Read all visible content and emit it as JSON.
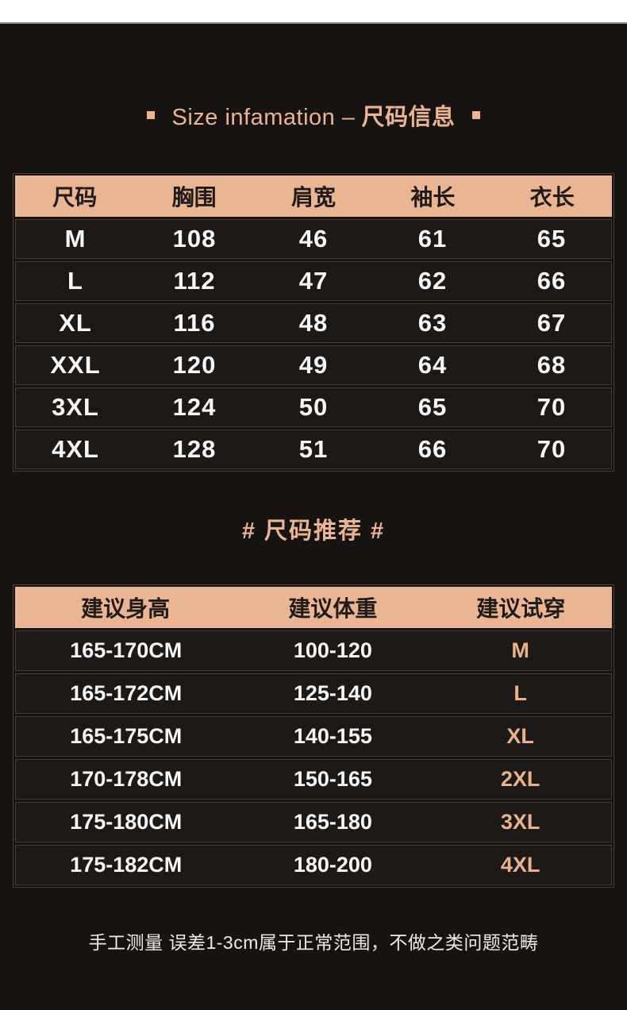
{
  "page": {
    "title_en": "Size infamation –",
    "title_zh": "尺码信息",
    "section2_title": "# 尺码推荐 #",
    "footer_note": "手工测量 误差1-3cm属于正常范围，不做之类问题范畴"
  },
  "colors": {
    "accent_peach": "#e9b592",
    "page_background": "#171311",
    "row_background": "#1c1917",
    "row_border": "#463b33",
    "header_text": "#201b18",
    "body_text": "#f7f7f7"
  },
  "size_table": {
    "headers": [
      "尺码",
      "胸围",
      "肩宽",
      "袖长",
      "衣长"
    ],
    "rows": [
      [
        "M",
        "108",
        "46",
        "61",
        "65"
      ],
      [
        "L",
        "112",
        "47",
        "62",
        "66"
      ],
      [
        "XL",
        "116",
        "48",
        "63",
        "67"
      ],
      [
        "XXL",
        "120",
        "49",
        "64",
        "68"
      ],
      [
        "3XL",
        "124",
        "50",
        "65",
        "70"
      ],
      [
        "4XL",
        "128",
        "51",
        "66",
        "70"
      ]
    ]
  },
  "recommend_table": {
    "headers": [
      "建议身高",
      "建议体重",
      "建议试穿"
    ],
    "rows": [
      [
        "165-170CM",
        "100-120",
        "M"
      ],
      [
        "165-172CM",
        "125-140",
        "L"
      ],
      [
        "165-175CM",
        "140-155",
        "XL"
      ],
      [
        "170-178CM",
        "150-165",
        "2XL"
      ],
      [
        "175-180CM",
        "165-180",
        "3XL"
      ],
      [
        "175-182CM",
        "180-200",
        "4XL"
      ]
    ]
  }
}
